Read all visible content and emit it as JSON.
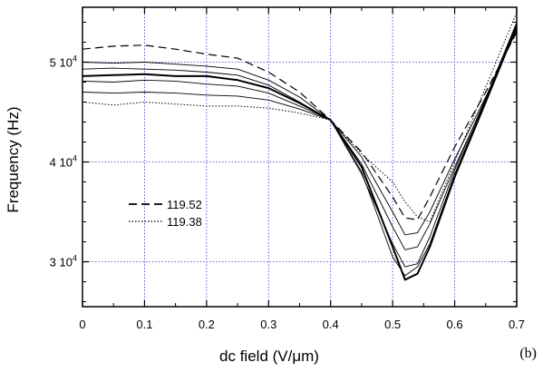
{
  "chart_data": {
    "type": "line",
    "xlabel": "dc field (V/μm)",
    "ylabel": "Frequency (Hz)",
    "panel_label": "(b)",
    "xlim": [
      0,
      0.7
    ],
    "ylim": [
      25500,
      55500
    ],
    "grid": true,
    "legend_placement": "left-center",
    "colors": {
      "grid": "#3333cc",
      "lines": "#000000",
      "frame": "#000000"
    },
    "x_ticks": [
      {
        "value": 0,
        "label": "0"
      },
      {
        "value": 0.1,
        "label": "0.1"
      },
      {
        "value": 0.2,
        "label": "0.2"
      },
      {
        "value": 0.3,
        "label": "0.3"
      },
      {
        "value": 0.4,
        "label": "0.4"
      },
      {
        "value": 0.5,
        "label": "0.5"
      },
      {
        "value": 0.6,
        "label": "0.6"
      },
      {
        "value": 0.7,
        "label": "0.7"
      }
    ],
    "y_ticks": [
      {
        "value": 30000,
        "mantissa": "3 10",
        "exponent": "4"
      },
      {
        "value": 40000,
        "mantissa": "4 10",
        "exponent": "4"
      },
      {
        "value": 50000,
        "mantissa": "5 10",
        "exponent": "4"
      }
    ],
    "series": [
      {
        "name": "119.52",
        "style": "dashed",
        "width": 1.2,
        "x": [
          0,
          0.05,
          0.1,
          0.15,
          0.2,
          0.25,
          0.3,
          0.35,
          0.4,
          0.45,
          0.5,
          0.52,
          0.54,
          0.56,
          0.6,
          0.65,
          0.7
        ],
        "y": [
          51300,
          51600,
          51700,
          51300,
          50800,
          50400,
          49000,
          47000,
          44200,
          41000,
          36500,
          34400,
          34200,
          36500,
          41500,
          47000,
          53000
        ]
      },
      {
        "name": "",
        "style": "solid",
        "width": 0.9,
        "x": [
          0,
          0.05,
          0.1,
          0.15,
          0.2,
          0.25,
          0.3,
          0.35,
          0.4,
          0.45,
          0.5,
          0.52,
          0.54,
          0.56,
          0.6,
          0.65,
          0.7
        ],
        "y": [
          50000,
          49900,
          50000,
          49800,
          49600,
          49300,
          48200,
          46500,
          44200,
          40500,
          35000,
          32700,
          32900,
          35000,
          40300,
          46500,
          53200
        ]
      },
      {
        "name": "",
        "style": "solid",
        "width": 0.9,
        "x": [
          0,
          0.05,
          0.1,
          0.15,
          0.2,
          0.25,
          0.3,
          0.35,
          0.4,
          0.45,
          0.5,
          0.52,
          0.54,
          0.56,
          0.6,
          0.65,
          0.7
        ],
        "y": [
          49300,
          49400,
          49300,
          49200,
          49000,
          48700,
          47700,
          46000,
          44200,
          39800,
          33500,
          31200,
          31500,
          33800,
          39500,
          46200,
          53400
        ]
      },
      {
        "name": "",
        "style": "solid",
        "width": 2.0,
        "x": [
          0,
          0.05,
          0.1,
          0.15,
          0.2,
          0.25,
          0.3,
          0.35,
          0.4,
          0.45,
          0.5,
          0.52,
          0.54,
          0.56,
          0.6,
          0.65,
          0.7
        ],
        "y": [
          48600,
          48700,
          48800,
          48600,
          48600,
          48200,
          47400,
          45900,
          44200,
          39500,
          31500,
          28200,
          28800,
          31500,
          38500,
          46000,
          53600
        ]
      },
      {
        "name": "",
        "style": "solid",
        "width": 0.9,
        "x": [
          0,
          0.05,
          0.1,
          0.15,
          0.2,
          0.25,
          0.3,
          0.35,
          0.4,
          0.45,
          0.5,
          0.52,
          0.54,
          0.56,
          0.6,
          0.65,
          0.7
        ],
        "y": [
          48100,
          48000,
          48200,
          48100,
          47800,
          47600,
          46900,
          45600,
          44200,
          39000,
          30500,
          28600,
          29500,
          31800,
          38800,
          46200,
          53800
        ]
      },
      {
        "name": "",
        "style": "solid",
        "width": 0.9,
        "x": [
          0,
          0.05,
          0.1,
          0.15,
          0.2,
          0.25,
          0.3,
          0.35,
          0.4,
          0.45,
          0.5,
          0.52,
          0.54,
          0.56,
          0.6,
          0.65,
          0.7
        ],
        "y": [
          47000,
          46900,
          47000,
          46900,
          46700,
          46600,
          46200,
          45300,
          44200,
          38800,
          31800,
          29500,
          29800,
          32500,
          39200,
          46400,
          54000
        ]
      },
      {
        "name": "119.38",
        "style": "dotted",
        "width": 1.0,
        "x": [
          0,
          0.05,
          0.1,
          0.15,
          0.2,
          0.25,
          0.3,
          0.35,
          0.4,
          0.45,
          0.5,
          0.52,
          0.54,
          0.56,
          0.6,
          0.65,
          0.7
        ],
        "y": [
          46000,
          45700,
          46000,
          45800,
          45600,
          45600,
          45400,
          44900,
          44200,
          40800,
          38000,
          36000,
          34500,
          34000,
          40000,
          47500,
          55000
        ]
      }
    ],
    "legend": [
      {
        "label": "119.52",
        "style": "dashed"
      },
      {
        "label": "119.38",
        "style": "dotted"
      }
    ]
  }
}
